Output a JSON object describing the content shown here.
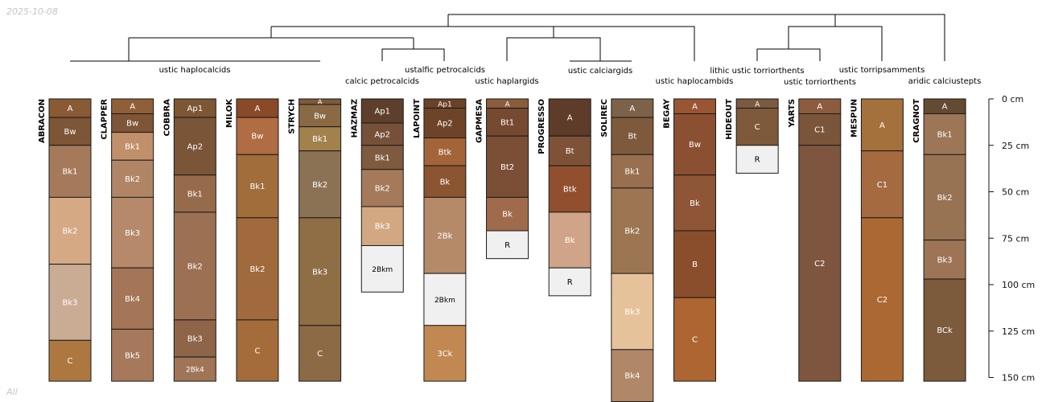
{
  "date_label": "2025-10-08",
  "subset_label": "All",
  "axis": {
    "unit": "cm",
    "ticks": [
      0,
      25,
      50,
      75,
      100,
      125,
      150
    ]
  },
  "colors": {
    "line": "#000000",
    "horizon_border": "#1a1a1a",
    "axis_text": "#111111"
  },
  "taxa_labels": [
    {
      "text": "ustic haplocalcids"
    },
    {
      "text": "ustalfic petrocalcids"
    },
    {
      "text": "calcic petrocalcids"
    },
    {
      "text": "ustic haplargids"
    },
    {
      "text": "ustic calciargids"
    },
    {
      "text": "ustic haplocambids"
    },
    {
      "text": "lithic ustic torriorthents"
    },
    {
      "text": "ustic torriorthents"
    },
    {
      "text": "ustic torripsamments"
    },
    {
      "text": "aridic calciustepts"
    }
  ],
  "profiles": [
    {
      "name": "ABRACON",
      "horizons": [
        {
          "name": "A",
          "top": 0,
          "bottom": 10,
          "color": "#8a5a35"
        },
        {
          "name": "Bw",
          "top": 10,
          "bottom": 25,
          "color": "#7d5637"
        },
        {
          "name": "Bk1",
          "top": 25,
          "bottom": 53,
          "color": "#a57a5a"
        },
        {
          "name": "Bk2",
          "top": 53,
          "bottom": 89,
          "color": "#d4a984"
        },
        {
          "name": "Bk3",
          "top": 89,
          "bottom": 130,
          "color": "#caab94"
        },
        {
          "name": "C",
          "top": 130,
          "bottom": 152,
          "color": "#ad7840"
        }
      ]
    },
    {
      "name": "CLAPPER",
      "horizons": [
        {
          "name": "A",
          "top": 0,
          "bottom": 8,
          "color": "#8f5f39"
        },
        {
          "name": "Bw",
          "top": 8,
          "bottom": 18,
          "color": "#7e5536"
        },
        {
          "name": "Bk1",
          "top": 18,
          "bottom": 33,
          "color": "#c1906a"
        },
        {
          "name": "Bk2",
          "top": 33,
          "bottom": 53,
          "color": "#b08565"
        },
        {
          "name": "Bk3",
          "top": 53,
          "bottom": 91,
          "color": "#b5896a"
        },
        {
          "name": "Bk4",
          "top": 91,
          "bottom": 124,
          "color": "#a47556"
        },
        {
          "name": "Bk5",
          "top": 124,
          "bottom": 152,
          "color": "#a7795c"
        }
      ]
    },
    {
      "name": "COBBRA",
      "horizons": [
        {
          "name": "Ap1",
          "top": 0,
          "bottom": 10,
          "color": "#7d5633"
        },
        {
          "name": "Ap2",
          "top": 10,
          "bottom": 41,
          "color": "#7a5538"
        },
        {
          "name": "Bk1",
          "top": 41,
          "bottom": 61,
          "color": "#966b4c"
        },
        {
          "name": "Bk2",
          "top": 61,
          "bottom": 119,
          "color": "#9c7053"
        },
        {
          "name": "Bk3",
          "top": 119,
          "bottom": 139,
          "color": "#8e6548"
        },
        {
          "name": "2Bk4",
          "top": 139,
          "bottom": 152,
          "color": "#9f7556"
        }
      ]
    },
    {
      "name": "MILOK",
      "horizons": [
        {
          "name": "A",
          "top": 0,
          "bottom": 10,
          "color": "#8a4a28"
        },
        {
          "name": "Bw",
          "top": 10,
          "bottom": 30,
          "color": "#b06c42"
        },
        {
          "name": "Bk1",
          "top": 30,
          "bottom": 64,
          "color": "#a16d3b"
        },
        {
          "name": "Bk2",
          "top": 64,
          "bottom": 119,
          "color": "#a06a3c"
        },
        {
          "name": "C",
          "top": 119,
          "bottom": 152,
          "color": "#a46c3a"
        }
      ]
    },
    {
      "name": "STRYCH",
      "horizons": [
        {
          "name": "A",
          "top": 0,
          "bottom": 3,
          "color": "#7d5a3a"
        },
        {
          "name": "Bw",
          "top": 3,
          "bottom": 15,
          "color": "#8a6a45"
        },
        {
          "name": "Bk1",
          "top": 15,
          "bottom": 28,
          "color": "#a2814d"
        },
        {
          "name": "Bk2",
          "top": 28,
          "bottom": 64,
          "color": "#8c7255"
        },
        {
          "name": "Bk3",
          "top": 64,
          "bottom": 122,
          "color": "#8f6d45"
        },
        {
          "name": "C",
          "top": 122,
          "bottom": 152,
          "color": "#8b6a45"
        }
      ]
    },
    {
      "name": "HAZMAZ",
      "horizons": [
        {
          "name": "Ap1",
          "top": 0,
          "bottom": 13,
          "color": "#5e3f2b"
        },
        {
          "name": "Ap2",
          "top": 13,
          "bottom": 25,
          "color": "#765038"
        },
        {
          "name": "Bk1",
          "top": 25,
          "bottom": 38,
          "color": "#7e5a3e"
        },
        {
          "name": "Bk2",
          "top": 38,
          "bottom": 58,
          "color": "#a47a5a"
        },
        {
          "name": "Bk3",
          "top": 58,
          "bottom": 79,
          "color": "#d2a882"
        },
        {
          "name": "2Bkm",
          "top": 79,
          "bottom": 104,
          "color": "#f0f0f0"
        }
      ]
    },
    {
      "name": "LAPOINT",
      "horizons": [
        {
          "name": "Ap1",
          "top": 0,
          "bottom": 5,
          "color": "#6a4228"
        },
        {
          "name": "Ap2",
          "top": 5,
          "bottom": 21,
          "color": "#6e4429"
        },
        {
          "name": "Btk",
          "top": 21,
          "bottom": 36,
          "color": "#a4643a"
        },
        {
          "name": "Bk",
          "top": 36,
          "bottom": 53,
          "color": "#8a5530"
        },
        {
          "name": "2Bk",
          "top": 53,
          "bottom": 94,
          "color": "#b48a68"
        },
        {
          "name": "2Bkm",
          "top": 94,
          "bottom": 122,
          "color": "#f0f0f0"
        },
        {
          "name": "3Ck",
          "top": 122,
          "bottom": 152,
          "color": "#c18852"
        }
      ]
    },
    {
      "name": "GAPMESA",
      "horizons": [
        {
          "name": "A",
          "top": 0,
          "bottom": 5,
          "color": "#8a5c3c"
        },
        {
          "name": "Bt1",
          "top": 5,
          "bottom": 20,
          "color": "#754a31"
        },
        {
          "name": "Bt2",
          "top": 20,
          "bottom": 53,
          "color": "#7a4f36"
        },
        {
          "name": "Bk",
          "top": 53,
          "bottom": 71,
          "color": "#a06b4c"
        },
        {
          "name": "R",
          "top": 71,
          "bottom": 86,
          "color": "#f0f0f0"
        }
      ]
    },
    {
      "name": "PROGRESSO",
      "horizons": [
        {
          "name": "A",
          "top": 0,
          "bottom": 20,
          "color": "#5e3c29"
        },
        {
          "name": "Bt",
          "top": 20,
          "bottom": 36,
          "color": "#7e5236"
        },
        {
          "name": "Btk",
          "top": 36,
          "bottom": 61,
          "color": "#914f2e"
        },
        {
          "name": "Bk",
          "top": 61,
          "bottom": 91,
          "color": "#d0a488"
        },
        {
          "name": "R",
          "top": 91,
          "bottom": 106,
          "color": "#f0f0f0"
        }
      ]
    },
    {
      "name": "SOLIREC",
      "horizons": [
        {
          "name": "A",
          "top": 0,
          "bottom": 10,
          "color": "#7c6248"
        },
        {
          "name": "Bt",
          "top": 10,
          "bottom": 30,
          "color": "#7e5a3c"
        },
        {
          "name": "Bk1",
          "top": 30,
          "bottom": 48,
          "color": "#98704f"
        },
        {
          "name": "Bk2",
          "top": 48,
          "bottom": 94,
          "color": "#9c7653"
        },
        {
          "name": "Bk3",
          "top": 94,
          "bottom": 135,
          "color": "#e6c29a"
        },
        {
          "name": "Bk4",
          "top": 135,
          "bottom": 163,
          "color": "#b08868"
        }
      ]
    },
    {
      "name": "BEGAY",
      "horizons": [
        {
          "name": "A",
          "top": 0,
          "bottom": 8,
          "color": "#9a5532"
        },
        {
          "name": "Bw",
          "top": 8,
          "bottom": 41,
          "color": "#8b5032"
        },
        {
          "name": "Bk",
          "top": 41,
          "bottom": 71,
          "color": "#8e5536"
        },
        {
          "name": "B",
          "top": 71,
          "bottom": 107,
          "color": "#8a4e2c"
        },
        {
          "name": "C",
          "top": 107,
          "bottom": 152,
          "color": "#ad6531"
        }
      ]
    },
    {
      "name": "HIDEOUT",
      "horizons": [
        {
          "name": "A",
          "top": 0,
          "bottom": 5,
          "color": "#7a5a40"
        },
        {
          "name": "C",
          "top": 5,
          "bottom": 25,
          "color": "#7e5a3a"
        },
        {
          "name": "R",
          "top": 25,
          "bottom": 40,
          "color": "#f0f0f0"
        }
      ]
    },
    {
      "name": "YARTS",
      "horizons": [
        {
          "name": "A",
          "top": 0,
          "bottom": 8,
          "color": "#8d5c3e"
        },
        {
          "name": "C1",
          "top": 8,
          "bottom": 25,
          "color": "#7a553a"
        },
        {
          "name": "C2",
          "top": 25,
          "bottom": 152,
          "color": "#7e5640"
        }
      ]
    },
    {
      "name": "MESPUN",
      "horizons": [
        {
          "name": "A",
          "top": 0,
          "bottom": 28,
          "color": "#a4703c"
        },
        {
          "name": "C1",
          "top": 28,
          "bottom": 64,
          "color": "#a66a40"
        },
        {
          "name": "C2",
          "top": 64,
          "bottom": 152,
          "color": "#ac6832"
        }
      ]
    },
    {
      "name": "CRAGNOT",
      "horizons": [
        {
          "name": "A",
          "top": 0,
          "bottom": 8,
          "color": "#624a33"
        },
        {
          "name": "Bk1",
          "top": 8,
          "bottom": 30,
          "color": "#9c7656"
        },
        {
          "name": "Bk2",
          "top": 30,
          "bottom": 76,
          "color": "#977253"
        },
        {
          "name": "Bk3",
          "top": 76,
          "bottom": 97,
          "color": "#9d7456"
        },
        {
          "name": "BCk",
          "top": 97,
          "bottom": 152,
          "color": "#7c5a3c"
        }
      ]
    }
  ]
}
